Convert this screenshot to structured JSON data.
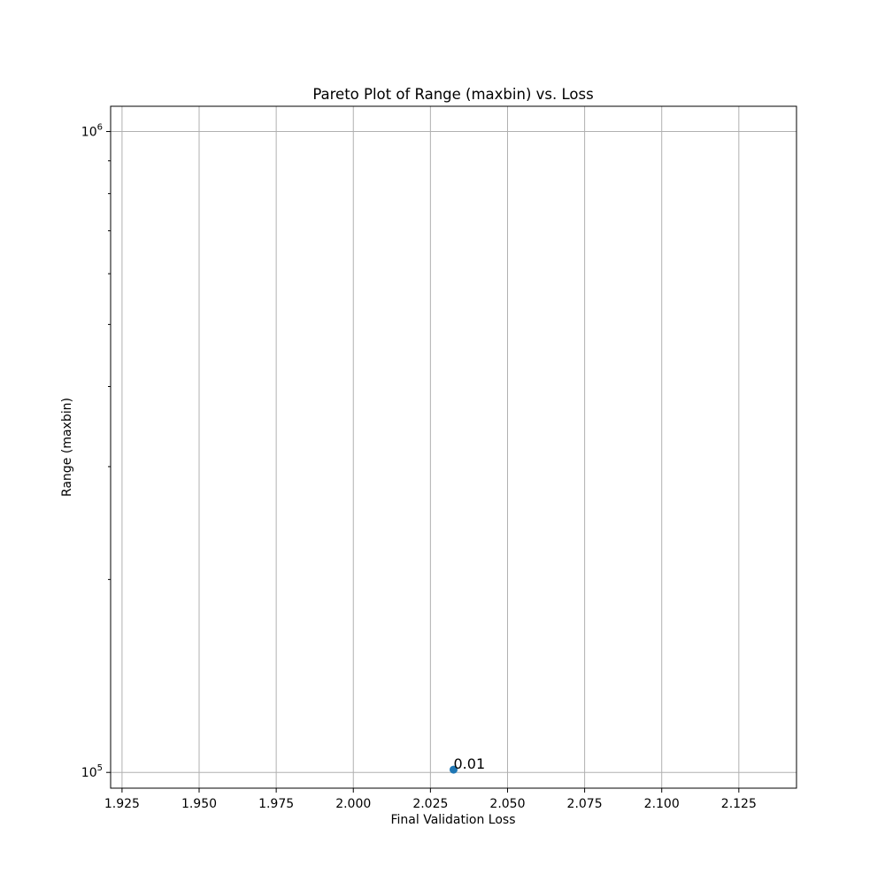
{
  "chart_data": {
    "type": "scatter",
    "title": "Pareto Plot of Range (maxbin) vs. Loss",
    "xlabel": "Final Validation Loss",
    "ylabel": "Range (maxbin)",
    "x_scale": "linear",
    "y_scale": "log",
    "xlim": [
      1.9213,
      2.1437
    ],
    "ylim": [
      94500,
      1095000
    ],
    "x_ticks": [
      {
        "value": 1.925,
        "label": "1.925"
      },
      {
        "value": 1.95,
        "label": "1.950"
      },
      {
        "value": 1.975,
        "label": "1.975"
      },
      {
        "value": 2.0,
        "label": "2.000"
      },
      {
        "value": 2.025,
        "label": "2.025"
      },
      {
        "value": 2.05,
        "label": "2.050"
      },
      {
        "value": 2.075,
        "label": "2.075"
      },
      {
        "value": 2.1,
        "label": "2.100"
      },
      {
        "value": 2.125,
        "label": "2.125"
      }
    ],
    "y_major_ticks": [
      {
        "value": 100000,
        "base": "10",
        "exp": "5"
      },
      {
        "value": 1000000,
        "base": "10",
        "exp": "6"
      }
    ],
    "y_minor_ticks": [
      200000,
      300000,
      400000,
      500000,
      600000,
      700000,
      800000,
      900000
    ],
    "grid": true,
    "points": [
      {
        "x": 2.0325,
        "y": 101000,
        "label": "0.01"
      }
    ],
    "marker_color": "#1f77b4"
  }
}
